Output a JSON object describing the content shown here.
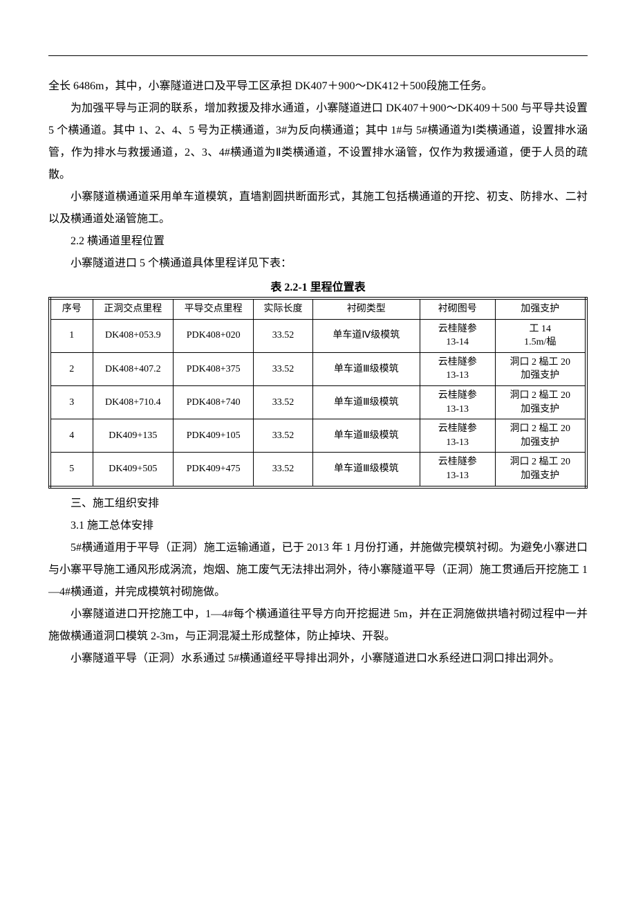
{
  "paragraphs": {
    "p1": "全长 6486m，其中，小寨隧道进口及平导工区承担 DK407＋900～DK412＋500段施工任务。",
    "p2": "为加强平导与正洞的联系，增加救援及排水通道，小寨隧道进口 DK407＋900～DK409＋500 与平导共设置 5 个横通道。其中 1、2、4、5 号为正横通道，3#为反向横通道；其中 1#与 5#横通道为Ⅰ类横通道，设置排水涵管，作为排水与救援通道，2、3、4#横通道为Ⅱ类横通道，不设置排水涵管，仅作为救援通道，便于人员的疏散。",
    "p3": "小寨隧道横通道采用单车道模筑，直墙割圆拱断面形式，其施工包括横通道的开挖、初支、防排水、二衬以及横通道处涵管施工。",
    "s2_2": "2.2  横通道里程位置",
    "p4": "小寨隧道进口 5 个横通道具体里程详见下表：",
    "s3": "三、施工组织安排",
    "s3_1": "3.1  施工总体安排",
    "p5": "5#横通道用于平导（正洞）施工运输通道，已于 2013 年 1 月份打通，并施做完模筑衬砌。为避免小寨进口与小寨平导施工通风形成涡流，炮烟、施工废气无法排出洞外，待小寨隧道平导（正洞）施工贯通后开挖施工 1—4#横通道，并完成模筑衬砌施做。",
    "p6": "小寨隧道进口开挖施工中，1—4#每个横通道往平导方向开挖掘进 5m，并在正洞施做拱墙衬砌过程中一并施做横通道洞口模筑 2-3m，与正洞混凝土形成整体，防止掉块、开裂。",
    "p7": "小寨隧道平导（正洞）水系通过 5#横通道经平导排出洞外，小寨隧道进口水系经进口洞口排出洞外。"
  },
  "table": {
    "title": "表 2.2-1  里程位置表",
    "headers": [
      "序号",
      "正洞交点里程",
      "平导交点里程",
      "实际长度",
      "衬砌类型",
      "衬砌图号",
      "加强支护"
    ],
    "rows": [
      {
        "no": "1",
        "zd": "DK408+053.9",
        "pd": "PDK408+020",
        "len": "33.52",
        "type": "单车道Ⅳ级模筑",
        "fig": "云桂隧参\n13-14",
        "reinforce": "工 14\n1.5m/榀"
      },
      {
        "no": "2",
        "zd": "DK408+407.2",
        "pd": "PDK408+375",
        "len": "33.52",
        "type": "单车道Ⅲ级模筑",
        "fig": "云桂隧参\n13-13",
        "reinforce": "洞口 2 榀工 20\n加强支护"
      },
      {
        "no": "3",
        "zd": "DK408+710.4",
        "pd": "PDK408+740",
        "len": "33.52",
        "type": "单车道Ⅲ级模筑",
        "fig": "云桂隧参\n13-13",
        "reinforce": "洞口 2 榀工 20\n加强支护"
      },
      {
        "no": "4",
        "zd": "DK409+135",
        "pd": "PDK409+105",
        "len": "33.52",
        "type": "单车道Ⅲ级模筑",
        "fig": "云桂隧参\n13-13",
        "reinforce": "洞口 2 榀工 20\n加强支护"
      },
      {
        "no": "5",
        "zd": "DK409+505",
        "pd": "PDK409+475",
        "len": "33.52",
        "type": "单车道Ⅲ级模筑",
        "fig": "云桂隧参\n13-13",
        "reinforce": "洞口 2 榀工 20\n加强支护"
      }
    ]
  }
}
